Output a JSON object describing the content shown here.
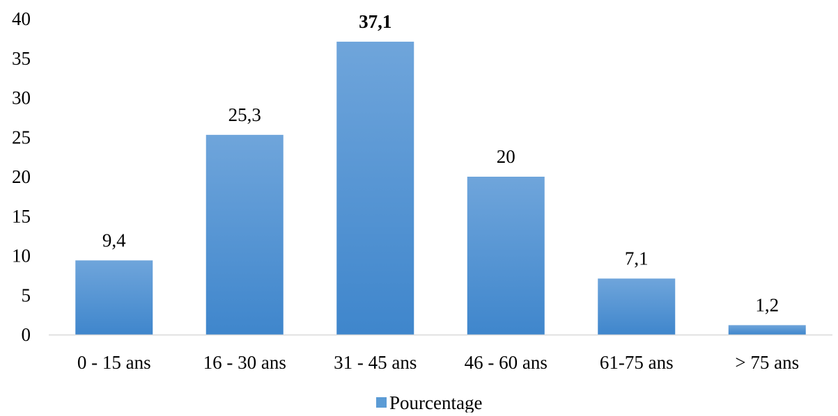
{
  "chart_data": {
    "type": "bar",
    "categories": [
      "0 - 15 ans",
      "16 - 30 ans",
      "31 - 45 ans",
      "46 - 60 ans",
      "61-75 ans",
      "> 75 ans"
    ],
    "series": [
      {
        "name": "Pourcentage",
        "values": [
          9.4,
          25.3,
          37.1,
          20,
          7.1,
          1.2
        ]
      }
    ],
    "data_labels": [
      "9,4",
      "25,3",
      "37,1",
      "20",
      "7,1",
      "1,2"
    ],
    "bold_label_index": 2,
    "yticks": [
      0,
      5,
      10,
      15,
      20,
      25,
      30,
      35,
      40
    ],
    "ylim": [
      0,
      40
    ],
    "title": "",
    "xlabel": "",
    "ylabel": "",
    "grid": false,
    "legend_position": "bottom",
    "colors": {
      "bar_top": "#6fa5db",
      "bar_bottom": "#3f86cc",
      "axis": "#d9d9d9",
      "legend_swatch": "#5b9bd5"
    }
  }
}
